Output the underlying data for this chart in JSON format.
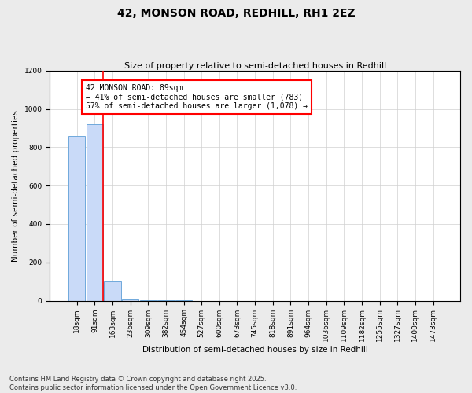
{
  "title": "42, MONSON ROAD, REDHILL, RH1 2EZ",
  "subtitle": "Size of property relative to semi-detached houses in Redhill",
  "xlabel": "Distribution of semi-detached houses by size in Redhill",
  "ylabel": "Number of semi-detached properties",
  "categories": [
    "18sqm",
    "91sqm",
    "163sqm",
    "236sqm",
    "309sqm",
    "382sqm",
    "454sqm",
    "527sqm",
    "600sqm",
    "673sqm",
    "745sqm",
    "818sqm",
    "891sqm",
    "964sqm",
    "1036sqm",
    "1109sqm",
    "1182sqm",
    "1255sqm",
    "1327sqm",
    "1400sqm",
    "1473sqm"
  ],
  "values": [
    860,
    920,
    100,
    5,
    2,
    1,
    1,
    0,
    0,
    0,
    0,
    0,
    0,
    0,
    0,
    0,
    0,
    0,
    0,
    0,
    0
  ],
  "bar_color": "#c9daf8",
  "bar_edge_color": "#6fa8dc",
  "red_line_x": 1,
  "annotation_title": "42 MONSON ROAD: 89sqm",
  "annotation_line1": "← 41% of semi-detached houses are smaller (783)",
  "annotation_line2": "57% of semi-detached houses are larger (1,078) →",
  "footer_line1": "Contains HM Land Registry data © Crown copyright and database right 2025.",
  "footer_line2": "Contains public sector information licensed under the Open Government Licence v3.0.",
  "ylim": [
    0,
    1200
  ],
  "yticks": [
    0,
    200,
    400,
    600,
    800,
    1000,
    1200
  ],
  "background_color": "#ebebeb",
  "plot_bg_color": "#ffffff",
  "title_fontsize": 10,
  "subtitle_fontsize": 8,
  "ylabel_fontsize": 7.5,
  "xlabel_fontsize": 7.5,
  "tick_fontsize": 6.5,
  "annotation_fontsize": 7,
  "footer_fontsize": 6
}
